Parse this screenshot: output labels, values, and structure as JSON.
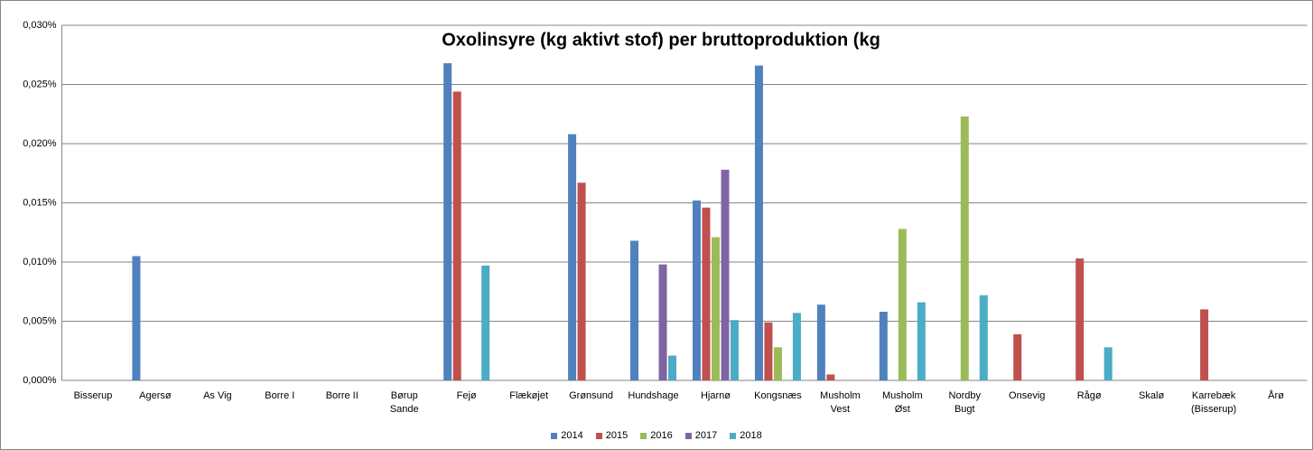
{
  "chart_data": {
    "type": "bar",
    "title": "Oxolinsyre (kg aktivt stof) per bruttoproduktion (kg",
    "categories": [
      "Bisserup",
      "Agersø",
      "As Vig",
      "Borre I",
      "Borre II",
      "Børup Sande",
      "Fejø",
      "Flækøjet",
      "Grønsund",
      "Hundshage",
      "Hjarnø",
      "Kongsnæs",
      "Musholm Vest",
      "Musholm Øst",
      "Nordby Bugt",
      "Onsevig",
      "Rågø",
      "Skalø",
      "Karrebæk (Bisserup)",
      "Årø"
    ],
    "series": [
      {
        "name": "2014",
        "color": "#4f81bd",
        "values": [
          null,
          0.0105,
          null,
          null,
          null,
          null,
          0.0268,
          null,
          0.0208,
          0.0118,
          0.0152,
          0.0266,
          0.0064,
          0.0058,
          null,
          null,
          null,
          null,
          null,
          null
        ]
      },
      {
        "name": "2015",
        "color": "#c0504d",
        "values": [
          null,
          null,
          null,
          null,
          null,
          null,
          0.0244,
          null,
          0.0167,
          null,
          0.0146,
          0.0049,
          0.0005,
          null,
          null,
          0.0039,
          0.0103,
          null,
          0.006,
          null
        ]
      },
      {
        "name": "2016",
        "color": "#9bbb59",
        "values": [
          null,
          null,
          null,
          null,
          null,
          null,
          null,
          null,
          null,
          null,
          0.0121,
          0.0028,
          null,
          0.0128,
          0.0223,
          null,
          null,
          null,
          null,
          null
        ]
      },
      {
        "name": "2017",
        "color": "#8064a2",
        "values": [
          null,
          null,
          null,
          null,
          null,
          null,
          null,
          null,
          null,
          0.0098,
          0.0178,
          null,
          null,
          null,
          null,
          null,
          null,
          null,
          null,
          null
        ]
      },
      {
        "name": "2018",
        "color": "#4bacc6",
        "values": [
          null,
          null,
          null,
          null,
          null,
          null,
          0.0097,
          null,
          null,
          0.0021,
          0.0051,
          0.0057,
          null,
          0.0066,
          0.0072,
          null,
          0.0028,
          null,
          null,
          null
        ]
      }
    ],
    "ylim": [
      0,
      0.03
    ],
    "yticks": [
      {
        "value": 0,
        "label": "0,000%"
      },
      {
        "value": 0.005,
        "label": "0,005%"
      },
      {
        "value": 0.01,
        "label": "0,010%"
      },
      {
        "value": 0.015,
        "label": "0,015%"
      },
      {
        "value": 0.02,
        "label": "0,020%"
      },
      {
        "value": 0.025,
        "label": "0,025%"
      },
      {
        "value": 0.03,
        "label": "0,030%"
      }
    ],
    "grid": true
  }
}
